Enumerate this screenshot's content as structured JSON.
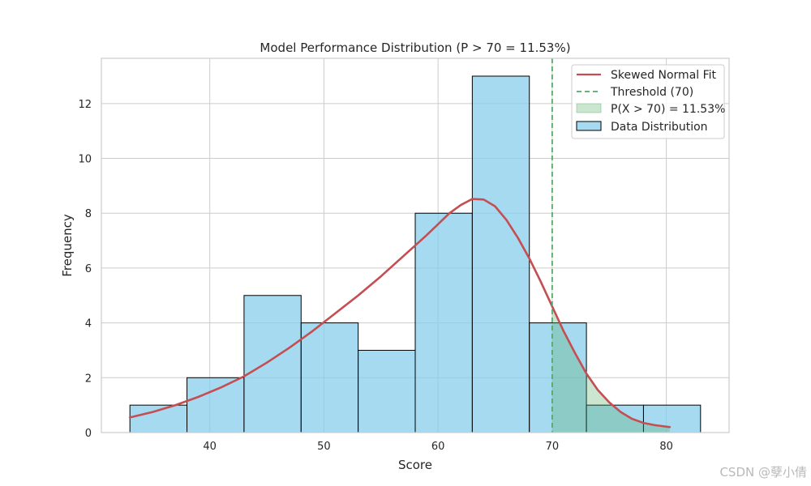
{
  "chart_data": {
    "type": "bar",
    "title": "Model Performance Distribution (P > 70 = 11.53%)",
    "xlabel": "Score",
    "ylabel": "Frequency",
    "xlim": [
      30.5,
      85.5
    ],
    "ylim": [
      0,
      13.65
    ],
    "xticks": [
      40,
      50,
      60,
      70,
      80
    ],
    "yticks": [
      0,
      2,
      4,
      6,
      8,
      10,
      12
    ],
    "grid": true,
    "bin_edges": [
      33,
      38,
      43,
      48,
      53,
      58,
      63,
      68,
      73,
      78,
      83
    ],
    "counts": [
      1,
      2,
      5,
      4,
      3,
      8,
      13,
      4,
      1,
      1
    ],
    "fit_curve": {
      "name": "Skewed Normal Fit",
      "x": [
        33,
        35,
        37,
        39,
        41,
        43,
        45,
        47,
        49,
        51,
        53,
        55,
        57,
        59,
        60,
        61,
        62,
        63,
        64,
        65,
        66,
        67,
        68,
        69,
        70,
        71,
        72,
        73,
        74,
        75,
        76,
        77,
        78,
        79,
        80.3
      ],
      "y": [
        0.55,
        0.75,
        1.0,
        1.3,
        1.65,
        2.05,
        2.55,
        3.1,
        3.7,
        4.35,
        5.0,
        5.7,
        6.45,
        7.2,
        7.6,
        8.0,
        8.3,
        8.52,
        8.5,
        8.25,
        7.75,
        7.1,
        6.35,
        5.5,
        4.6,
        3.7,
        2.9,
        2.15,
        1.55,
        1.1,
        0.75,
        0.5,
        0.35,
        0.27,
        0.2
      ]
    },
    "threshold": {
      "label": "Threshold (70)",
      "value": 70
    },
    "shaded_area": {
      "label": "P(X > 70) = 11.53%",
      "from": 70
    },
    "legend": [
      "Skewed Normal Fit",
      "Threshold (70)",
      "P(X > 70) = 11.53%",
      "Data Distribution"
    ],
    "legend_position": "top-right",
    "colors": {
      "bar": "#87ceeb",
      "curve": "#c44e52",
      "threshold": "#55a868",
      "shade": "#55a868",
      "grid": "#cccccc"
    }
  },
  "watermark": "CSDN @孽小倩"
}
